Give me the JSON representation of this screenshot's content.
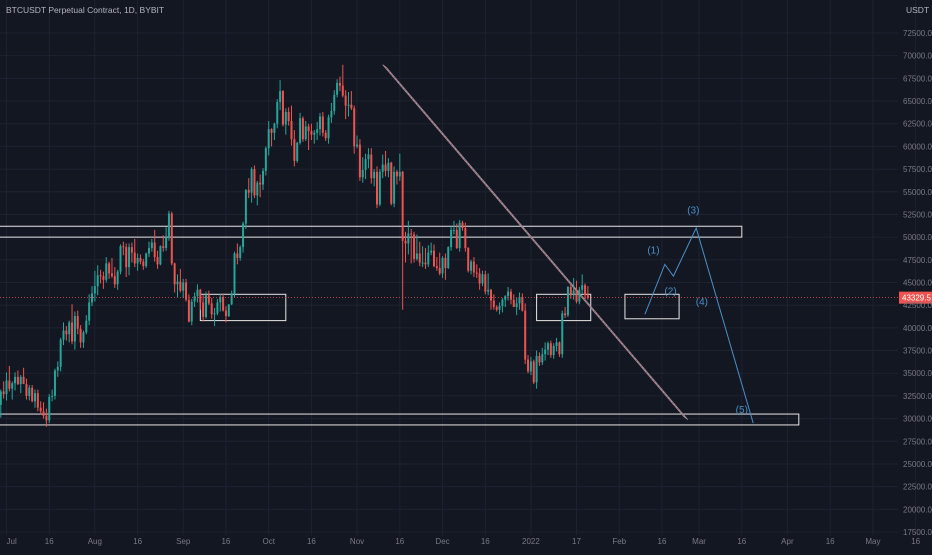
{
  "header": {
    "symbol_title": "BTCUSDT Perpetual Contract, 1D, BYBIT",
    "currency": "USDT"
  },
  "colors": {
    "background": "#131722",
    "grid": "#1e2230",
    "axis_text": "#787b86",
    "up": "#26a69a",
    "down": "#ef5350",
    "box": "#e6e6e6",
    "wave": "#4a90c8",
    "price_line": "#ef5350",
    "price_label_bg": "#ef5350"
  },
  "chart_data": {
    "type": "candlestick",
    "symbol": "BTCUSDT",
    "interval": "1D",
    "exchange": "BYBIT",
    "ylim": [
      17500,
      75000
    ],
    "y_ticks": [
      "17500.0",
      "20000.0",
      "22500.0",
      "25000.0",
      "27500.0",
      "30000.0",
      "32500.0",
      "35000.0",
      "37500.0",
      "40000.0",
      "42500.0",
      "45000.0",
      "47500.0",
      "50000.0",
      "52500.0",
      "55000.0",
      "57500.0",
      "60000.0",
      "62500.0",
      "65000.0",
      "67500.0",
      "70000.0",
      "72500.0"
    ],
    "x_ticks": [
      "Jul",
      "16",
      "Aug",
      "16",
      "Sep",
      "16",
      "Oct",
      "16",
      "Nov",
      "16",
      "Dec",
      "16",
      "2022",
      "17",
      "Feb",
      "16",
      "Mar",
      "16",
      "Apr",
      "16",
      "May",
      "16"
    ],
    "current_price": "43329.5",
    "trendline": {
      "from": {
        "x": "Nov 10",
        "y": 69000
      },
      "to": {
        "x": "Feb 24",
        "y": 30000
      }
    },
    "zones": [
      {
        "name": "resistance",
        "from": "Jul 01",
        "to": "Mar 16",
        "low": 50000,
        "high": 51200
      },
      {
        "name": "support",
        "from": "Jul 01",
        "to": "Apr 05",
        "low": 29300,
        "high": 30500
      }
    ],
    "boxes": [
      {
        "from": "Sep 07",
        "to": "Oct 07",
        "low": 40800,
        "high": 43700
      },
      {
        "from": "Jan 03",
        "to": "Jan 22",
        "low": 40800,
        "high": 43700
      },
      {
        "from": "Feb 03",
        "to": "Feb 22",
        "low": 41000,
        "high": 43700
      }
    ],
    "wave_labels": [
      "(1)",
      "(2)",
      "(3)",
      "(4)",
      "(5)"
    ],
    "wave_path": [
      {
        "x": "Feb 10",
        "y": 41500
      },
      {
        "x": "Feb 17",
        "y": 47000
      },
      {
        "x": "Feb 20",
        "y": 45700
      },
      {
        "x": "Feb 28",
        "y": 51000
      },
      {
        "x": "Mar 20",
        "y": 29500
      }
    ],
    "candles": [
      [
        31500,
        33200,
        30100,
        33000
      ],
      [
        33000,
        34100,
        32200,
        32700
      ],
      [
        32700,
        35100,
        32000,
        34200
      ],
      [
        34200,
        35800,
        33000,
        33300
      ],
      [
        33300,
        34100,
        32100,
        33900
      ],
      [
        33900,
        35100,
        33100,
        34600
      ],
      [
        34600,
        35300,
        33700,
        33800
      ],
      [
        33800,
        34800,
        32800,
        34600
      ],
      [
        34600,
        35600,
        33900,
        33800
      ],
      [
        33800,
        34400,
        32100,
        32500
      ],
      [
        32500,
        33700,
        32000,
        33400
      ],
      [
        33400,
        33700,
        31800,
        31900
      ],
      [
        31900,
        33200,
        31200,
        32800
      ],
      [
        32800,
        33200,
        30800,
        31200
      ],
      [
        31200,
        31900,
        30400,
        30800
      ],
      [
        30800,
        31800,
        30000,
        30300
      ],
      [
        30300,
        31100,
        29100,
        29800
      ],
      [
        29800,
        32700,
        29500,
        32400
      ],
      [
        32400,
        33200,
        31900,
        32500
      ],
      [
        32500,
        35500,
        32100,
        35300
      ],
      [
        35300,
        36300,
        34600,
        35700
      ],
      [
        35700,
        38900,
        35200,
        38700
      ],
      [
        38700,
        40600,
        38100,
        39700
      ],
      [
        39700,
        40200,
        38600,
        39300
      ],
      [
        39300,
        40800,
        38400,
        40600
      ],
      [
        40600,
        42600,
        38200,
        38500
      ],
      [
        38500,
        41800,
        37600,
        41300
      ],
      [
        41300,
        41900,
        39300,
        39900
      ],
      [
        39900,
        40300,
        37800,
        38400
      ],
      [
        38400,
        39700,
        37800,
        39500
      ],
      [
        39500,
        41400,
        39300,
        40800
      ],
      [
        40800,
        43700,
        40300,
        42800
      ],
      [
        42800,
        44600,
        42400,
        43800
      ],
      [
        43800,
        46300,
        42900,
        44600
      ],
      [
        44600,
        46900,
        43600,
        45800
      ],
      [
        45800,
        46400,
        44900,
        45700
      ],
      [
        45700,
        46200,
        44300,
        45300
      ],
      [
        45300,
        47800,
        45000,
        47100
      ],
      [
        47100,
        47300,
        45400,
        46000
      ],
      [
        46000,
        47700,
        45500,
        45700
      ],
      [
        45700,
        46700,
        44400,
        44800
      ],
      [
        44800,
        46400,
        44200,
        46200
      ],
      [
        46200,
        49200,
        45900,
        49000
      ],
      [
        49000,
        49500,
        48000,
        48900
      ],
      [
        48900,
        49300,
        45600,
        46700
      ],
      [
        46700,
        49300,
        45800,
        48900
      ],
      [
        48900,
        49400,
        47200,
        48300
      ],
      [
        48300,
        49800,
        46700,
        47100
      ],
      [
        47100,
        48200,
        46300,
        47700
      ],
      [
        47700,
        48100,
        47000,
        47300
      ],
      [
        47300,
        47600,
        46400,
        46800
      ],
      [
        46800,
        48300,
        46600,
        48200
      ],
      [
        48200,
        49500,
        47800,
        48800
      ],
      [
        48800,
        49800,
        48400,
        49400
      ],
      [
        49400,
        50800,
        47300,
        47800
      ],
      [
        47800,
        48500,
        46500,
        47000
      ],
      [
        47000,
        49100,
        46900,
        49000
      ],
      [
        49000,
        50200,
        48400,
        48800
      ],
      [
        48800,
        51100,
        48500,
        50000
      ],
      [
        50000,
        52900,
        49600,
        52600
      ],
      [
        52600,
        52800,
        46900,
        47100
      ],
      [
        47100,
        47200,
        43900,
        44800
      ],
      [
        44800,
        45900,
        43400,
        45100
      ],
      [
        45100,
        46500,
        43900,
        44100
      ],
      [
        44100,
        45400,
        43300,
        45000
      ],
      [
        45000,
        45400,
        42900,
        43100
      ],
      [
        43100,
        43700,
        40600,
        40700
      ],
      [
        40700,
        43200,
        40300,
        42900
      ],
      [
        42900,
        43900,
        42300,
        43500
      ],
      [
        43500,
        44800,
        42800,
        44200
      ],
      [
        44200,
        44300,
        42000,
        42800
      ],
      [
        42800,
        43600,
        40700,
        41200
      ],
      [
        41200,
        44000,
        41000,
        43600
      ],
      [
        43600,
        44100,
        42500,
        42700
      ],
      [
        42700,
        43300,
        41000,
        41500
      ],
      [
        41500,
        42200,
        40200,
        41600
      ],
      [
        41600,
        43200,
        41400,
        42800
      ],
      [
        42800,
        43800,
        41800,
        43400
      ],
      [
        43400,
        43800,
        41800,
        41900
      ],
      [
        41900,
        42400,
        40600,
        41300
      ],
      [
        41300,
        42600,
        41200,
        42600
      ],
      [
        42600,
        44100,
        42500,
        43800
      ],
      [
        43800,
        48400,
        43400,
        48200
      ],
      [
        48200,
        49300,
        47000,
        47700
      ],
      [
        47700,
        49100,
        47400,
        48900
      ],
      [
        48900,
        51700,
        48300,
        51500
      ],
      [
        51500,
        55300,
        50900,
        55200
      ],
      [
        55200,
        56500,
        54300,
        54900
      ],
      [
        54900,
        57700,
        53800,
        57500
      ],
      [
        57500,
        57900,
        54300,
        54600
      ],
      [
        54600,
        56200,
        53500,
        56000
      ],
      [
        56000,
        56900,
        54400,
        55800
      ],
      [
        55800,
        57600,
        55200,
        57300
      ],
      [
        57300,
        60000,
        56800,
        59800
      ],
      [
        59800,
        62800,
        59000,
        61900
      ],
      [
        61900,
        62000,
        60000,
        61500
      ],
      [
        61500,
        62600,
        60700,
        62500
      ],
      [
        62500,
        65200,
        62000,
        64900
      ],
      [
        64900,
        67300,
        64000,
        66100
      ],
      [
        66100,
        66200,
        62200,
        62400
      ],
      [
        62400,
        64200,
        61300,
        63800
      ],
      [
        63800,
        64300,
        62300,
        62800
      ],
      [
        62800,
        64500,
        60100,
        60800
      ],
      [
        60800,
        61800,
        57800,
        58400
      ],
      [
        58400,
        60500,
        58200,
        60400
      ],
      [
        60400,
        63700,
        60200,
        63100
      ],
      [
        63100,
        63300,
        60500,
        60800
      ],
      [
        60800,
        62800,
        60600,
        62200
      ],
      [
        62200,
        62500,
        59600,
        61700
      ],
      [
        61700,
        62500,
        60700,
        61300
      ],
      [
        61300,
        61800,
        60300,
        61500
      ],
      [
        61500,
        62700,
        60700,
        61900
      ],
      [
        61900,
        63700,
        61200,
        63300
      ],
      [
        63300,
        63800,
        61100,
        61500
      ],
      [
        61500,
        61800,
        60600,
        60900
      ],
      [
        60900,
        63500,
        60300,
        63200
      ],
      [
        63200,
        64800,
        62600,
        63900
      ],
      [
        63900,
        66200,
        63500,
        65700
      ],
      [
        65700,
        67400,
        65400,
        67000
      ],
      [
        67000,
        67700,
        66100,
        66700
      ],
      [
        66700,
        69000,
        65400,
        65600
      ],
      [
        65600,
        66200,
        63000,
        64500
      ],
      [
        64500,
        66000,
        63300,
        64600
      ],
      [
        64600,
        66100,
        64000,
        64200
      ],
      [
        64200,
        64500,
        59200,
        60000
      ],
      [
        60000,
        61200,
        59800,
        60200
      ],
      [
        60200,
        60800,
        56200,
        56600
      ],
      [
        56600,
        58800,
        56000,
        57400
      ],
      [
        57400,
        59200,
        56400,
        58600
      ],
      [
        58600,
        59800,
        57600,
        59100
      ],
      [
        59100,
        59800,
        55900,
        56500
      ],
      [
        56500,
        57500,
        55600,
        57200
      ],
      [
        57200,
        57800,
        53200,
        53600
      ],
      [
        53600,
        57500,
        53400,
        57200
      ],
      [
        57200,
        59100,
        56500,
        58000
      ],
      [
        58000,
        59500,
        56700,
        57300
      ],
      [
        57300,
        58700,
        56600,
        58200
      ],
      [
        58200,
        58300,
        53500,
        53700
      ],
      [
        53700,
        57800,
        53300,
        57200
      ],
      [
        57200,
        57400,
        55800,
        56700
      ],
      [
        56700,
        59200,
        56200,
        57200
      ],
      [
        57200,
        57300,
        42000,
        49600
      ],
      [
        49600,
        50600,
        47200,
        49300
      ],
      [
        49300,
        51800,
        48100,
        50400
      ],
      [
        50400,
        50900,
        47100,
        50300
      ],
      [
        50300,
        50600,
        47200,
        47600
      ],
      [
        47600,
        50300,
        47400,
        48200
      ],
      [
        48200,
        49500,
        46800,
        47200
      ],
      [
        47200,
        49000,
        46700,
        47200
      ],
      [
        47200,
        48800,
        46500,
        47000
      ],
      [
        47000,
        49100,
        46700,
        48300
      ],
      [
        48300,
        49400,
        48000,
        48500
      ],
      [
        48500,
        49200,
        46700,
        46800
      ],
      [
        46800,
        47800,
        46300,
        46600
      ],
      [
        46600,
        48300,
        45800,
        46000
      ],
      [
        46000,
        47900,
        45500,
        47700
      ],
      [
        47700,
        48200,
        45300,
        46600
      ],
      [
        46600,
        49000,
        46500,
        48900
      ],
      [
        48900,
        51200,
        48500,
        50800
      ],
      [
        50800,
        51800,
        50300,
        50800
      ],
      [
        50800,
        51500,
        48700,
        48800
      ],
      [
        48800,
        51900,
        48400,
        51600
      ],
      [
        51600,
        51800,
        50700,
        51000
      ],
      [
        51000,
        51600,
        48400,
        48800
      ],
      [
        48800,
        48900,
        46100,
        46300
      ],
      [
        46300,
        47500,
        45900,
        47300
      ],
      [
        47300,
        47800,
        45600,
        46100
      ],
      [
        46100,
        47000,
        45500,
        46000
      ],
      [
        46000,
        46600,
        44200,
        44900
      ],
      [
        44900,
        46300,
        44600,
        45900
      ],
      [
        45900,
        46300,
        43700,
        44000
      ],
      [
        44000,
        46000,
        43600,
        44200
      ],
      [
        44200,
        44300,
        42000,
        43000
      ],
      [
        43000,
        43700,
        42000,
        42300
      ],
      [
        42300,
        42500,
        41800,
        42000
      ],
      [
        42000,
        42800,
        41500,
        42400
      ],
      [
        42400,
        43300,
        41700,
        43100
      ],
      [
        43100,
        43600,
        42300,
        43500
      ],
      [
        43500,
        44500,
        43000,
        44000
      ],
      [
        44000,
        44300,
        42600,
        43100
      ],
      [
        43100,
        43700,
        42400,
        42300
      ],
      [
        42300,
        43300,
        41400,
        42700
      ],
      [
        42700,
        43900,
        42000,
        43400
      ],
      [
        43400,
        43800,
        41800,
        41900
      ],
      [
        41900,
        42700,
        36000,
        36500
      ],
      [
        36500,
        37000,
        35000,
        35200
      ],
      [
        35200,
        36800,
        34800,
        36300
      ],
      [
        36300,
        36500,
        33800,
        34000
      ],
      [
        34000,
        37500,
        33300,
        36900
      ],
      [
        36900,
        37300,
        35800,
        36200
      ],
      [
        36200,
        37800,
        35900,
        37100
      ],
      [
        37100,
        38400,
        36400,
        37600
      ],
      [
        37600,
        38500,
        37000,
        38300
      ],
      [
        38300,
        38600,
        36700,
        37000
      ],
      [
        37000,
        38300,
        36600,
        38000
      ],
      [
        38000,
        38900,
        37400,
        38400
      ],
      [
        38400,
        38500,
        36800,
        37100
      ],
      [
        37100,
        41900,
        36700,
        41600
      ],
      [
        41600,
        42300,
        41100,
        41400
      ],
      [
        41400,
        44600,
        41200,
        44500
      ],
      [
        44500,
        44800,
        43200,
        43600
      ],
      [
        43600,
        45500,
        43100,
        44100
      ],
      [
        44100,
        45200,
        42700,
        42900
      ],
      [
        42900,
        44500,
        42600,
        44200
      ],
      [
        44200,
        45900,
        43800,
        44700
      ],
      [
        44700,
        44900,
        43200,
        43600
      ],
      [
        43600,
        44600,
        43100,
        43330
      ]
    ]
  }
}
